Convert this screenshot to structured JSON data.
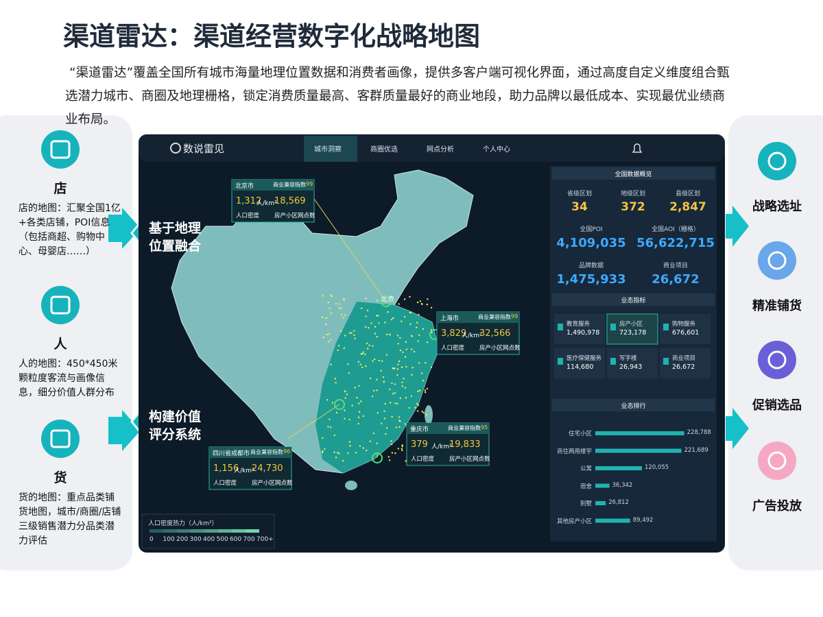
{
  "header": {
    "title": "渠道雷达：渠道经营数字化战略地图",
    "description": "“渠道雷达”覆盖全国所有城市海量地理位置数据和消费者画像，提供多客户端可视化界面，通过高度自定义维度组合甄选潜力城市、商圈及地理栅格，锁定消费质量最高、客群质量最好的商业地段，助力品牌以最低成本、实现最优业绩商业布局。"
  },
  "left": [
    {
      "title": "店",
      "text": "店的地图：汇聚全国1亿+各类店铺，POI信息（包括商超、购物中心、母婴店……）"
    },
    {
      "title": "人",
      "text": "人的地图：450*450米颗粒度客流与画像信息，细分价值人群分布"
    },
    {
      "title": "货",
      "text": "货的地图：重点品类铺货地图，城市/商圈/店铺三级销售潜力分品类潜力评估"
    }
  ],
  "middle": [
    [
      "基于地理",
      "位置融合"
    ],
    [
      "构建价值",
      "评分系统"
    ]
  ],
  "right": [
    "战略选址",
    "精准铺货",
    "促销选品",
    "广告投放"
  ],
  "app": {
    "logo": "数说雷见",
    "nav": [
      "城市洞察",
      "商圈优选",
      "网点分析",
      "个人中心"
    ],
    "map_label": "北京",
    "callouts": [
      {
        "city": "北京市",
        "score_label": "商业兼容指数",
        "score": "99",
        "density": "1,312",
        "unit": "人/km²",
        "count": "18,569",
        "density_label": "人口密度",
        "count_label": "房产小区网点数"
      },
      {
        "city": "上海市",
        "score_label": "商业兼容指数",
        "score": "99",
        "density": "3,829",
        "unit": "人/km²",
        "count": "32,566",
        "density_label": "人口密度",
        "count_label": "房产小区网点数"
      },
      {
        "city": "重庆市",
        "score_label": "商业兼容指数",
        "score": "95",
        "density": "379",
        "unit": "人/km²",
        "count": "19,833",
        "density_label": "人口密度",
        "count_label": "房产小区网点数"
      },
      {
        "city": "四川省成都市",
        "score_label": "商业兼容指数",
        "score": "96",
        "density": "1,156",
        "unit": "人/km²",
        "count": "24,730",
        "density_label": "人口密度",
        "count_label": "房产小区网点数"
      }
    ],
    "legend": {
      "title": "人口密度热力（人/km²）",
      "ticks": [
        "0",
        "100",
        "200",
        "300",
        "400",
        "500",
        "600",
        "700",
        "700+"
      ]
    },
    "overview": {
      "title": "全国数据概览",
      "stats": [
        {
          "label": "省级区划",
          "value": "34"
        },
        {
          "label": "地级区划",
          "value": "372"
        },
        {
          "label": "县级区划",
          "value": "2,847"
        },
        {
          "label": "全国POI",
          "value": "4,109,035"
        },
        {
          "label": "全国AOI（栅格）",
          "value": "56,622,715"
        },
        {
          "label": "品牌数据",
          "value": "1,475,933"
        },
        {
          "label": "商业项目",
          "value": "26,672"
        }
      ]
    },
    "business": {
      "title": "业态指标",
      "items": [
        {
          "label": "教育服务",
          "value": "1,490,978"
        },
        {
          "label": "房产小区",
          "value": "723,178"
        },
        {
          "label": "购物服务",
          "value": "676,601"
        },
        {
          "label": "医疗保健服务",
          "value": "114,680"
        },
        {
          "label": "写字楼",
          "value": "26,943"
        },
        {
          "label": "商业项目",
          "value": "26,672"
        }
      ]
    },
    "ranking": {
      "title": "业态排行",
      "type": "bar",
      "categories": [
        "住宅小区",
        "商住两用楼宇",
        "公寓",
        "宿舍",
        "别墅",
        "其他房产小区"
      ],
      "values": [
        228788,
        221689,
        120055,
        36342,
        26812,
        89492
      ],
      "value_labels": [
        "228,788",
        "221,689",
        "120,055",
        "36,342",
        "26,812",
        "89,492"
      ],
      "xlim": [
        0,
        240000
      ],
      "color": "#1fb3b0"
    }
  }
}
